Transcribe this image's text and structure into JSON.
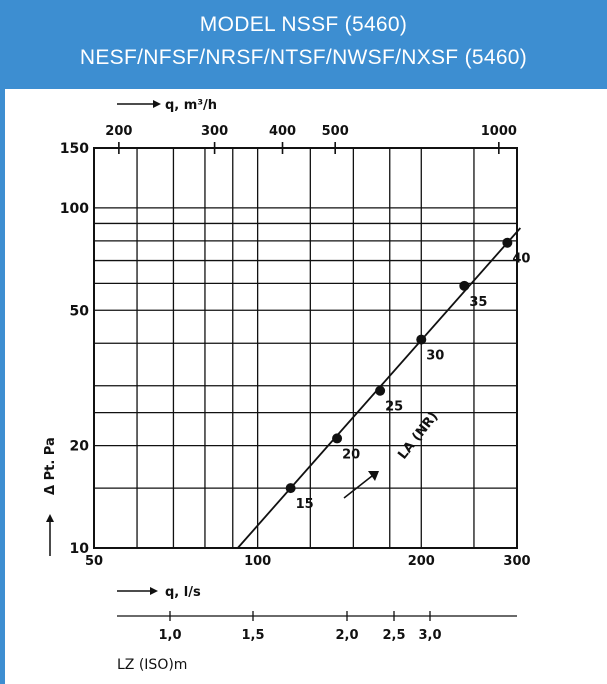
{
  "header": {
    "line1": "MODEL NSSF (5460)",
    "line2": "NESF/NFSF/NRSF/NTSF/NWSF/NXSF (5460)"
  },
  "colors": {
    "header_bg": "#3d8ed1",
    "header_text": "#ffffff",
    "ink": "#111111"
  },
  "chart_data": {
    "type": "line",
    "x_scale": "log",
    "y_scale": "log",
    "xlabel": "q, l/s",
    "ylabel": "Δ Pt. Pa",
    "top_axis_label": "q, m³/h",
    "bottom_secondary_label": "LZ (ISO)m",
    "xlim": [
      50,
      300
    ],
    "ylim": [
      10,
      150
    ],
    "x_tick_labels": [
      "50",
      "100",
      "200",
      "300"
    ],
    "y_tick_labels": [
      "10",
      "20",
      "50",
      "100",
      "150"
    ],
    "top_tick_labels": [
      "200",
      "300",
      "400",
      "500",
      "1000"
    ],
    "lz_tick_labels": [
      "1,0",
      "1,5",
      "2,0",
      "2,5",
      "3,0"
    ],
    "series": [
      {
        "name": "LA (NR)",
        "points": [
          {
            "x": 115,
            "y": 15,
            "label": "15"
          },
          {
            "x": 140,
            "y": 21,
            "label": "20"
          },
          {
            "x": 168,
            "y": 29,
            "label": "25"
          },
          {
            "x": 200,
            "y": 41,
            "label": "30"
          },
          {
            "x": 240,
            "y": 59,
            "label": "35"
          },
          {
            "x": 288,
            "y": 79,
            "label": "40"
          }
        ]
      }
    ],
    "grid": true
  }
}
